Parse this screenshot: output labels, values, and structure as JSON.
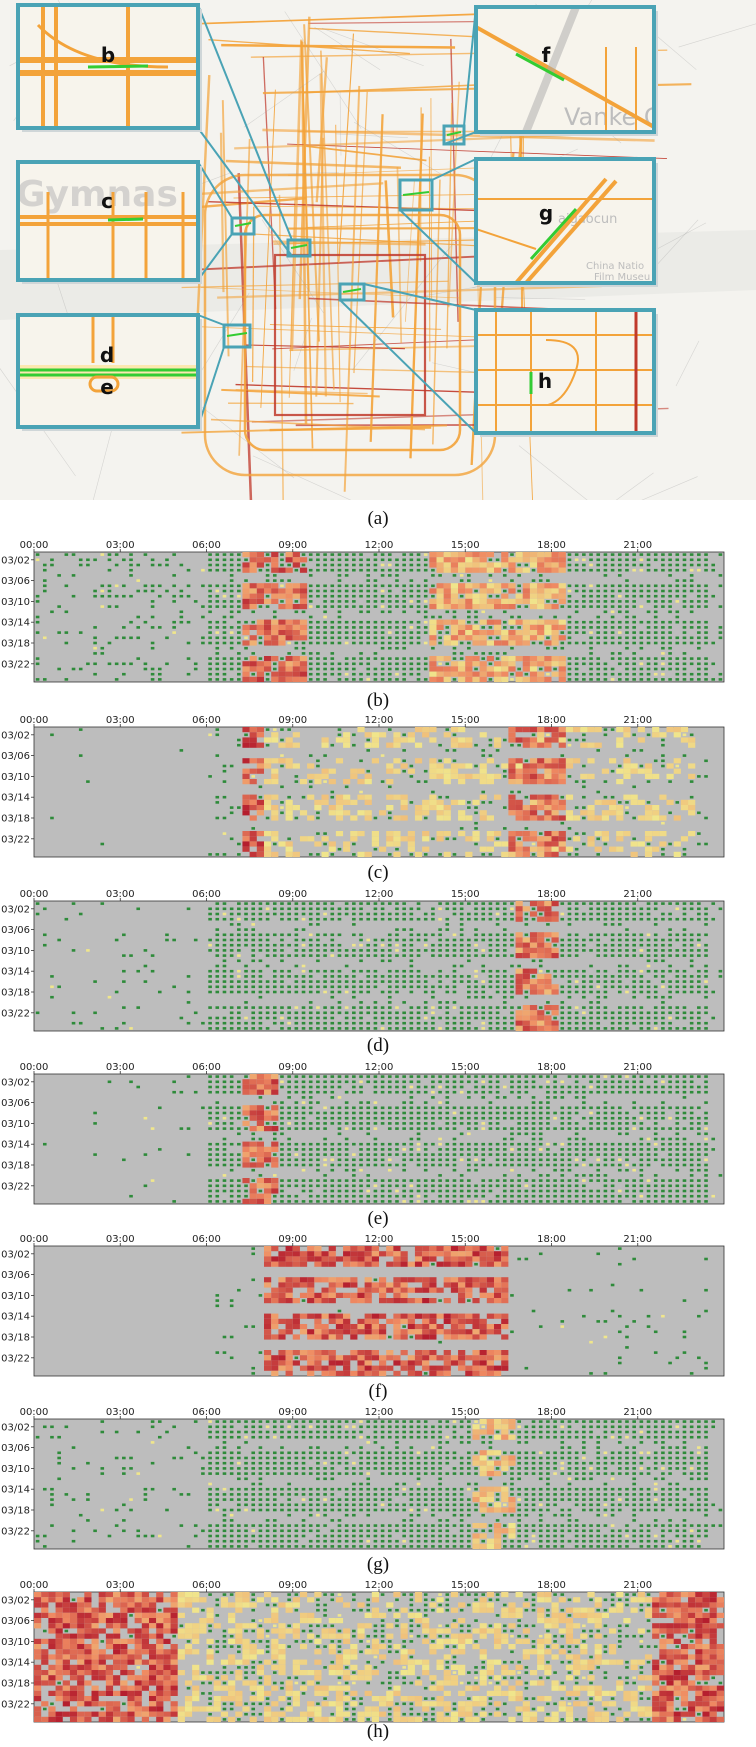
{
  "map": {
    "caption": "(a)",
    "insets": [
      {
        "label": "b"
      },
      {
        "label": "c"
      },
      {
        "label": "d"
      },
      {
        "label": "e"
      },
      {
        "label": "f",
        "background_text": "Vanke Cit"
      },
      {
        "label": "g",
        "background_text": "aigaocun",
        "background_text_2": "China Natio",
        "background_text_3": "Film Museu"
      },
      {
        "label": "h"
      }
    ],
    "background_text": "Gymnas",
    "colors": {
      "road": "#f3a33a",
      "road_major": "#c0392b",
      "highlight": "#33cc33",
      "frame": "#4aa3b5"
    }
  },
  "chart_data": [
    {
      "type": "heatmap",
      "caption": "(b)",
      "x_tick_labels": [
        "00:00",
        "03:00",
        "06:00",
        "09:00",
        "12:00",
        "15:00",
        "18:00",
        "21:00"
      ],
      "y_tick_labels": [
        "03/02",
        "03/06",
        "03/10",
        "03/14",
        "03/18",
        "03/22"
      ],
      "day_range": [
        "03/01",
        "03/25"
      ],
      "time_range": [
        "00:00",
        "24:00"
      ],
      "colors": {
        "background": "#bdbdbd",
        "free": "#2e8b3a",
        "congested": "#b2182b"
      },
      "low_activity": {
        "night_density": 0.3,
        "day_density": 0.95
      },
      "congestion_spans": [
        {
          "from": "07:15",
          "to": "09:30",
          "intensity": 0.8
        },
        {
          "from": "13:45",
          "to": "18:30",
          "intensity": 0.55
        }
      ]
    },
    {
      "type": "heatmap",
      "caption": "(c)",
      "x_tick_labels": [
        "00:00",
        "03:00",
        "06:00",
        "09:00",
        "12:00",
        "15:00",
        "18:00",
        "21:00"
      ],
      "y_tick_labels": [
        "03/02",
        "03/06",
        "03/10",
        "03/14",
        "03/18",
        "03/22"
      ],
      "day_range": [
        "03/01",
        "03/25"
      ],
      "time_range": [
        "00:00",
        "24:00"
      ],
      "colors": {
        "background": "#bdbdbd",
        "free": "#2e8b3a",
        "congested": "#b2182b"
      },
      "low_activity": {
        "night_density": 0.01,
        "day_density": 0.25
      },
      "congestion_spans": [
        {
          "from": "07:15",
          "to": "08:00",
          "intensity": 0.85
        },
        {
          "from": "08:00",
          "to": "23:00",
          "intensity": 0.35
        },
        {
          "from": "16:30",
          "to": "18:30",
          "intensity": 0.75
        }
      ]
    },
    {
      "type": "heatmap",
      "caption": "(d)",
      "x_tick_labels": [
        "00:00",
        "03:00",
        "06:00",
        "09:00",
        "12:00",
        "15:00",
        "18:00",
        "21:00"
      ],
      "y_tick_labels": [
        "03/02",
        "03/06",
        "03/10",
        "03/14",
        "03/18",
        "03/22"
      ],
      "day_range": [
        "03/01",
        "03/25"
      ],
      "time_range": [
        "00:00",
        "24:00"
      ],
      "colors": {
        "background": "#bdbdbd",
        "free": "#2e8b3a",
        "congested": "#b2182b"
      },
      "low_activity": {
        "night_density": 0.15,
        "day_density": 0.9
      },
      "congestion_spans": [
        {
          "from": "16:45",
          "to": "18:15",
          "intensity": 0.75
        }
      ]
    },
    {
      "type": "heatmap",
      "caption": "(e)",
      "x_tick_labels": [
        "00:00",
        "03:00",
        "06:00",
        "09:00",
        "12:00",
        "15:00",
        "18:00",
        "21:00"
      ],
      "y_tick_labels": [
        "03/02",
        "03/06",
        "03/10",
        "03/14",
        "03/18",
        "03/22"
      ],
      "day_range": [
        "03/01",
        "03/25"
      ],
      "time_range": [
        "00:00",
        "24:00"
      ],
      "colors": {
        "background": "#bdbdbd",
        "free": "#2e8b3a",
        "congested": "#b2182b"
      },
      "low_activity": {
        "night_density": 0.05,
        "day_density": 0.95
      },
      "congestion_spans": [
        {
          "from": "07:15",
          "to": "08:30",
          "intensity": 0.8
        }
      ]
    },
    {
      "type": "heatmap",
      "caption": "(f)",
      "x_tick_labels": [
        "00:00",
        "03:00",
        "06:00",
        "09:00",
        "12:00",
        "15:00",
        "18:00",
        "21:00"
      ],
      "y_tick_labels": [
        "03/02",
        "03/06",
        "03/10",
        "03/14",
        "03/18",
        "03/22"
      ],
      "day_range": [
        "03/01",
        "03/25"
      ],
      "time_range": [
        "00:00",
        "24:00"
      ],
      "colors": {
        "background": "#bdbdbd",
        "free": "#2e8b3a",
        "congested": "#b2182b"
      },
      "low_activity": {
        "night_density": 0.0,
        "day_density": 0.08
      },
      "congestion_spans": [
        {
          "from": "08:00",
          "to": "16:30",
          "intensity": 0.85
        }
      ]
    },
    {
      "type": "heatmap",
      "caption": "(g)",
      "x_tick_labels": [
        "00:00",
        "03:00",
        "06:00",
        "09:00",
        "12:00",
        "15:00",
        "18:00",
        "21:00"
      ],
      "y_tick_labels": [
        "03/02",
        "03/06",
        "03/10",
        "03/14",
        "03/18",
        "03/22"
      ],
      "day_range": [
        "03/01",
        "03/25"
      ],
      "time_range": [
        "00:00",
        "24:00"
      ],
      "colors": {
        "background": "#bdbdbd",
        "free": "#2e8b3a",
        "congested": "#b2182b"
      },
      "low_activity": {
        "night_density": 0.15,
        "day_density": 0.97
      },
      "congestion_spans": [
        {
          "from": "15:15",
          "to": "16:45",
          "intensity": 0.45
        }
      ]
    },
    {
      "type": "heatmap",
      "caption": "(h)",
      "x_tick_labels": [
        "00:00",
        "03:00",
        "06:00",
        "09:00",
        "12:00",
        "15:00",
        "18:00",
        "21:00"
      ],
      "y_tick_labels": [
        "03/02",
        "03/06",
        "03/10",
        "03/14",
        "03/18",
        "03/22"
      ],
      "day_range": [
        "03/01",
        "03/25"
      ],
      "time_range": [
        "00:00",
        "24:00"
      ],
      "colors": {
        "background": "#bdbdbd",
        "free": "#2e8b3a",
        "congested": "#b2182b"
      },
      "low_activity": {
        "night_density": 0.2,
        "day_density": 0.55
      },
      "congestion_spans": [
        {
          "from": "00:00",
          "to": "05:00",
          "intensity": 0.85
        },
        {
          "from": "05:00",
          "to": "21:30",
          "intensity": 0.35
        },
        {
          "from": "21:30",
          "to": "24:00",
          "intensity": 0.85
        }
      ]
    }
  ]
}
